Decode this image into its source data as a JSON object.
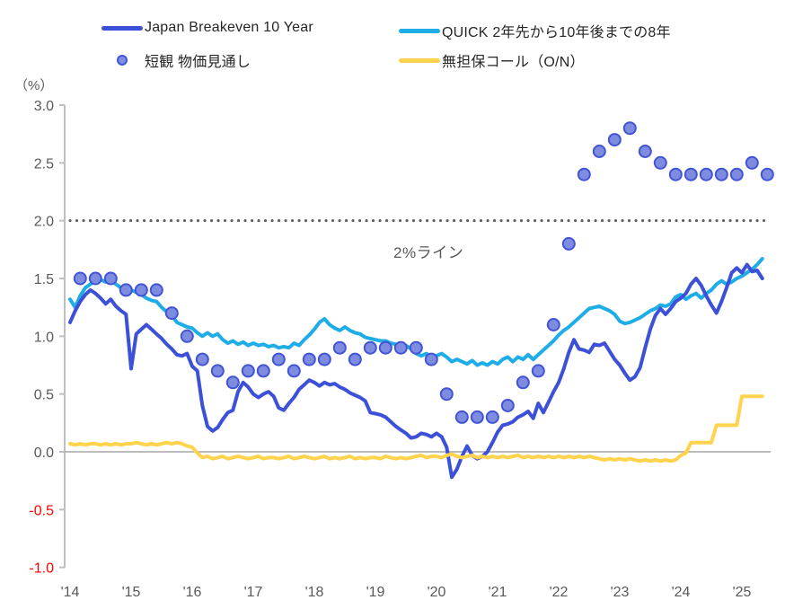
{
  "legend": {
    "items": [
      {
        "label": "Japan Breakeven 10 Year",
        "swatch": "line",
        "series_id": "bei"
      },
      {
        "label": "QUICK 2年先から10年後までの8年",
        "swatch": "line",
        "series_id": "quick"
      },
      {
        "label": "短観 物価見通し",
        "swatch": "dot",
        "series_id": "tankan"
      },
      {
        "label": "無担保コール（O/N）",
        "swatch": "line",
        "series_id": "call"
      }
    ]
  },
  "unit_label": "（%）",
  "annotation_label": "2%ライン",
  "colors": {
    "axis_line": "#BFBFBF",
    "zero_line": "#A6A6A6",
    "axis_label": "#595959",
    "negative_axis_label": "#FF0000",
    "reference_dotted": "#595959",
    "legend_text": "#262626",
    "bei_line": "#3C50D8",
    "quick_line": "#1FADE8",
    "call_line": "#FFD34D",
    "tankan_dot_fill": "#7E8CE0",
    "tankan_dot_stroke": "#4254D6"
  },
  "chart_data": {
    "type": "line",
    "title": "",
    "xlabel": "",
    "ylabel": "（%）",
    "ylim": [
      -1.0,
      3.0
    ],
    "xlim": [
      2014,
      2025.6
    ],
    "grid": false,
    "legend_position": "top",
    "reference_line": {
      "value": 2.0,
      "style": "dotted",
      "label": "2%ライン"
    },
    "axis": {
      "y_ticks": [
        3.0,
        2.5,
        2.0,
        1.5,
        1.0,
        0.5,
        0.0,
        -0.5,
        -1.0
      ],
      "y_tick_labels": [
        "3.0",
        "2.5",
        "2.0",
        "1.5",
        "1.0",
        "0.5",
        "0.0",
        "-0.5",
        "-1.0"
      ],
      "x_tick_labels": [
        "'14",
        "'15",
        "'16",
        "'17",
        "'18",
        "'19",
        "'20",
        "'21",
        "'22",
        "'23",
        "'24",
        "'25"
      ],
      "x_tick_years": [
        2014,
        2015,
        2016,
        2017,
        2018,
        2019,
        2020,
        2021,
        2022,
        2023,
        2024,
        2025
      ]
    },
    "series": [
      {
        "id": "bei",
        "name": "Japan Breakeven 10 Year",
        "type": "line",
        "color": "#3C50D8",
        "width": 4,
        "start_year": 2014,
        "freq": "monthly",
        "values": [
          1.12,
          1.22,
          1.3,
          1.36,
          1.4,
          1.37,
          1.33,
          1.28,
          1.32,
          1.26,
          1.22,
          1.19,
          0.72,
          1.02,
          1.06,
          1.1,
          1.06,
          1.02,
          0.98,
          0.93,
          0.89,
          0.84,
          0.83,
          0.85,
          0.74,
          0.7,
          0.4,
          0.22,
          0.18,
          0.21,
          0.28,
          0.34,
          0.36,
          0.52,
          0.6,
          0.56,
          0.5,
          0.47,
          0.5,
          0.52,
          0.48,
          0.38,
          0.36,
          0.42,
          0.47,
          0.54,
          0.58,
          0.62,
          0.6,
          0.57,
          0.6,
          0.58,
          0.59,
          0.56,
          0.54,
          0.51,
          0.49,
          0.47,
          0.44,
          0.34,
          0.33,
          0.32,
          0.3,
          0.26,
          0.22,
          0.19,
          0.16,
          0.12,
          0.13,
          0.16,
          0.15,
          0.13,
          0.16,
          0.13,
          0.04,
          -0.22,
          -0.15,
          -0.04,
          0.05,
          -0.03,
          -0.06,
          -0.04,
          0.0,
          0.08,
          0.17,
          0.23,
          0.24,
          0.26,
          0.3,
          0.32,
          0.35,
          0.29,
          0.42,
          0.34,
          0.43,
          0.52,
          0.6,
          0.72,
          0.86,
          0.97,
          0.89,
          0.88,
          0.86,
          0.93,
          0.92,
          0.94,
          0.87,
          0.8,
          0.75,
          0.68,
          0.62,
          0.65,
          0.73,
          0.9,
          1.06,
          1.18,
          1.24,
          1.19,
          1.24,
          1.3,
          1.33,
          1.37,
          1.45,
          1.5,
          1.44,
          1.35,
          1.27,
          1.2,
          1.3,
          1.42,
          1.55,
          1.59,
          1.55,
          1.62,
          1.56,
          1.57,
          1.5
        ]
      },
      {
        "id": "quick",
        "name": "QUICK 2年先から10年後までの8年",
        "type": "line",
        "color": "#1FADE8",
        "width": 4,
        "start_year": 2014,
        "freq": "monthly",
        "values": [
          1.32,
          1.25,
          1.35,
          1.42,
          1.45,
          1.48,
          1.49,
          1.47,
          1.49,
          1.45,
          1.42,
          1.44,
          1.4,
          1.38,
          1.36,
          1.33,
          1.31,
          1.3,
          1.25,
          1.21,
          1.18,
          1.12,
          1.1,
          1.08,
          1.07,
          1.03,
          1.0,
          1.03,
          1.0,
          1.02,
          0.97,
          0.94,
          0.96,
          0.93,
          0.95,
          0.92,
          0.94,
          0.92,
          0.93,
          0.91,
          0.92,
          0.9,
          0.91,
          0.9,
          0.94,
          0.92,
          0.97,
          1.01,
          1.06,
          1.12,
          1.15,
          1.1,
          1.07,
          1.05,
          1.08,
          1.05,
          1.03,
          1.02,
          0.99,
          0.98,
          0.97,
          0.96,
          0.96,
          0.94,
          0.93,
          0.92,
          0.92,
          0.89,
          0.85,
          0.83,
          0.85,
          0.82,
          0.83,
          0.85,
          0.82,
          0.78,
          0.8,
          0.78,
          0.76,
          0.79,
          0.75,
          0.77,
          0.75,
          0.78,
          0.76,
          0.8,
          0.82,
          0.78,
          0.82,
          0.8,
          0.84,
          0.8,
          0.84,
          0.88,
          0.92,
          0.96,
          1.01,
          1.05,
          1.08,
          1.12,
          1.16,
          1.2,
          1.24,
          1.25,
          1.26,
          1.24,
          1.22,
          1.19,
          1.13,
          1.11,
          1.12,
          1.14,
          1.16,
          1.19,
          1.22,
          1.24,
          1.27,
          1.26,
          1.28,
          1.34,
          1.36,
          1.32,
          1.35,
          1.37,
          1.33,
          1.37,
          1.4,
          1.45,
          1.48,
          1.45,
          1.47,
          1.5,
          1.52,
          1.55,
          1.58,
          1.62,
          1.67
        ]
      },
      {
        "id": "call",
        "name": "無担保コール（O/N）",
        "type": "line",
        "color": "#FFD34D",
        "width": 4,
        "start_year": 2014,
        "freq": "monthly",
        "values": [
          0.07,
          0.06,
          0.07,
          0.06,
          0.07,
          0.07,
          0.06,
          0.07,
          0.06,
          0.07,
          0.06,
          0.07,
          0.07,
          0.08,
          0.07,
          0.06,
          0.07,
          0.06,
          0.07,
          0.08,
          0.07,
          0.08,
          0.07,
          0.05,
          0.04,
          -0.01,
          -0.05,
          -0.04,
          -0.06,
          -0.05,
          -0.04,
          -0.06,
          -0.05,
          -0.04,
          -0.05,
          -0.06,
          -0.05,
          -0.04,
          -0.06,
          -0.05,
          -0.05,
          -0.06,
          -0.05,
          -0.04,
          -0.06,
          -0.05,
          -0.04,
          -0.05,
          -0.06,
          -0.05,
          -0.04,
          -0.06,
          -0.05,
          -0.06,
          -0.05,
          -0.04,
          -0.06,
          -0.05,
          -0.06,
          -0.05,
          -0.05,
          -0.06,
          -0.04,
          -0.05,
          -0.06,
          -0.05,
          -0.06,
          -0.05,
          -0.04,
          -0.03,
          -0.05,
          -0.04,
          -0.04,
          -0.05,
          -0.03,
          -0.02,
          -0.04,
          -0.05,
          -0.04,
          -0.03,
          -0.05,
          -0.04,
          -0.05,
          -0.04,
          -0.05,
          -0.04,
          -0.05,
          -0.04,
          -0.03,
          -0.05,
          -0.04,
          -0.05,
          -0.04,
          -0.05,
          -0.04,
          -0.05,
          -0.04,
          -0.05,
          -0.04,
          -0.05,
          -0.04,
          -0.05,
          -0.04,
          -0.05,
          -0.06,
          -0.07,
          -0.06,
          -0.07,
          -0.06,
          -0.07,
          -0.06,
          -0.07,
          -0.08,
          -0.07,
          -0.08,
          -0.07,
          -0.08,
          -0.07,
          -0.08,
          -0.07,
          -0.03,
          -0.01,
          0.08,
          0.08,
          0.08,
          0.08,
          0.08,
          0.23,
          0.23,
          0.23,
          0.23,
          0.23,
          0.48,
          0.48,
          0.48,
          0.48,
          0.48
        ]
      },
      {
        "id": "tankan",
        "name": "短観 物価見通し",
        "type": "scatter",
        "fill": "#7E8CE0",
        "stroke": "#4254D6",
        "radius": 6.5,
        "start_year": 2014,
        "freq": "quarterly",
        "quarter_months": [
          3,
          6,
          9,
          12
        ],
        "values": [
          1.5,
          1.5,
          1.5,
          1.4,
          1.4,
          1.4,
          1.2,
          1.0,
          0.8,
          0.7,
          0.6,
          0.7,
          0.7,
          0.8,
          0.7,
          0.8,
          0.8,
          0.9,
          0.8,
          0.9,
          0.9,
          0.9,
          0.9,
          0.8,
          0.5,
          0.3,
          0.3,
          0.3,
          0.4,
          0.6,
          0.7,
          1.1,
          1.8,
          2.4,
          2.6,
          2.7,
          2.8,
          2.6,
          2.5,
          2.4,
          2.4,
          2.4,
          2.4,
          2.4,
          2.5,
          2.4
        ]
      }
    ]
  }
}
